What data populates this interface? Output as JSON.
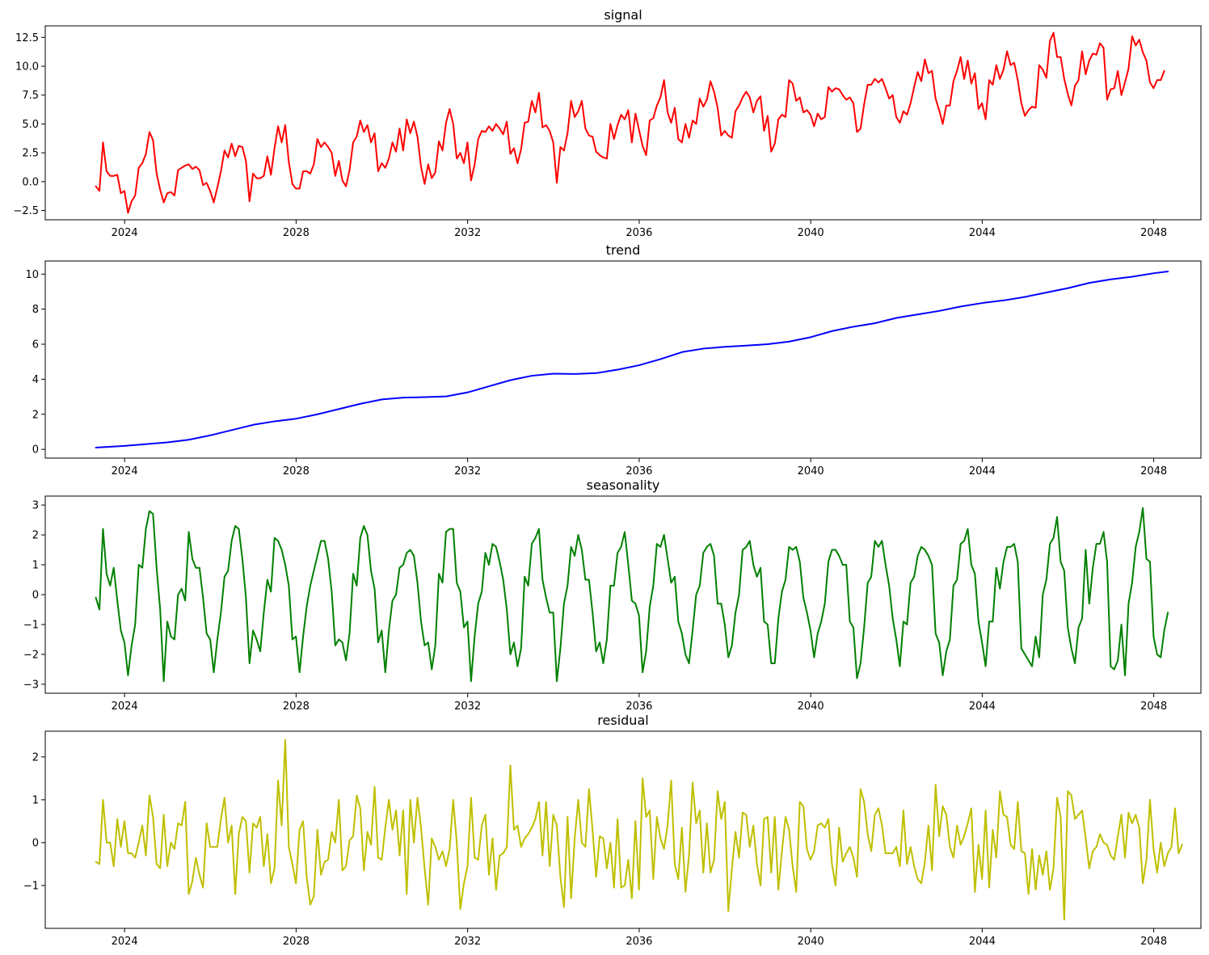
{
  "chart_data": [
    {
      "type": "line",
      "title": "signal",
      "color": "#ff0000",
      "xlim": [
        2022.15,
        2049.1
      ],
      "ylim": [
        -3.3,
        13.5
      ],
      "yticks": [
        -2.5,
        0.0,
        2.5,
        5.0,
        7.5,
        10.0,
        12.5
      ],
      "ytick_labels": [
        "−2.5",
        "0.0",
        "2.5",
        "5.0",
        "7.5",
        "10.0",
        "12.5"
      ],
      "xticks": [
        2024,
        2028,
        2032,
        2036,
        2040,
        2044,
        2048
      ],
      "xtick_labels": [
        "2024",
        "2028",
        "2032",
        "2036",
        "2040",
        "2044",
        "2048"
      ],
      "x_start": 2023.33,
      "x_step": 0.08333,
      "values": [
        -0.4,
        -0.8,
        3.4,
        0.9,
        0.5,
        0.5,
        0.6,
        -1.0,
        -0.8,
        -2.7,
        -1.7,
        -1.2,
        1.2,
        1.6,
        2.4,
        4.3,
        3.6,
        0.7,
        -0.7,
        -1.8,
        -1.0,
        -0.9,
        -1.2,
        1.0,
        1.2,
        1.4,
        1.5,
        1.1,
        1.3,
        1.0,
        -0.3,
        -0.1,
        -0.8,
        -1.8,
        -0.5,
        0.9,
        2.7,
        2.1,
        3.3,
        2.2,
        3.1,
        3.0,
        1.8,
        -1.7,
        0.7,
        0.3,
        0.3,
        0.5,
        2.2,
        0.6,
        2.9,
        4.8,
        3.4,
        4.9,
        1.7,
        -0.2,
        -0.6,
        -0.6,
        0.9,
        0.9,
        0.7,
        1.5,
        3.7,
        3.0,
        3.4,
        3.0,
        2.5,
        0.5,
        1.8,
        0.1,
        -0.4,
        1.0,
        3.4,
        3.9,
        5.3,
        4.3,
        4.9,
        3.4,
        4.2,
        0.9,
        1.6,
        1.2,
        2.0,
        3.4,
        2.6,
        4.6,
        2.7,
        5.4,
        4.2,
        5.2,
        3.9,
        1.3,
        -0.2,
        1.5,
        0.3,
        0.8,
        3.5,
        2.7,
        5.1,
        6.3,
        5.0,
        2.0,
        2.5,
        1.6,
        3.4,
        0.1,
        1.5,
        3.7,
        4.4,
        4.3,
        4.8,
        4.4,
        5.0,
        4.6,
        4.1,
        5.2,
        2.4,
        2.9,
        1.6,
        2.8,
        5.1,
        5.2,
        7.0,
        6.0,
        7.7,
        4.7,
        4.9,
        4.4,
        3.4,
        -0.1,
        3.0,
        2.7,
        4.2,
        7.0,
        5.6,
        6.1,
        7.0,
        4.6,
        4.0,
        3.9,
        2.6,
        2.3,
        2.1,
        2.0,
        5.0,
        3.7,
        4.9,
        5.8,
        5.4,
        6.2,
        3.4,
        5.9,
        4.5,
        3.1,
        2.3,
        5.3,
        5.5,
        6.6,
        7.3,
        8.8,
        6.0,
        5.1,
        6.4,
        3.7,
        3.4,
        5.0,
        3.8,
        5.3,
        5.0,
        7.2,
        6.5,
        7.1,
        8.7,
        7.8,
        6.4,
        4.0,
        4.4,
        4.0,
        3.8,
        6.1,
        6.6,
        7.3,
        7.8,
        7.3,
        6.0,
        7.0,
        7.4,
        4.4,
        5.7,
        2.6,
        3.3,
        5.4,
        5.8,
        5.6,
        8.8,
        8.5,
        7.0,
        7.3,
        6.0,
        6.2,
        5.8,
        4.8,
        5.9,
        5.4,
        5.6,
        8.2,
        7.8,
        8.1,
        8.0,
        7.5,
        7.1,
        7.3,
        6.8,
        4.3,
        4.6,
        6.7,
        8.4,
        8.4,
        8.9,
        8.6,
        8.9,
        8.1,
        7.2,
        7.5,
        5.6,
        5.1,
        6.1,
        5.8,
        6.8,
        8.2,
        9.5,
        8.7,
        10.6,
        9.4,
        9.6,
        7.2,
        6.2,
        5.0,
        6.6,
        6.6,
        8.7,
        9.6,
        10.8,
        8.9,
        10.5,
        8.5,
        9.4,
        6.3,
        6.8,
        5.4,
        8.8,
        8.4,
        10.1,
        8.9,
        9.7,
        11.3,
        10.1,
        10.3,
        8.8,
        6.8,
        5.7,
        6.2,
        6.5,
        6.4,
        10.1,
        9.7,
        9.0,
        12.2,
        12.9,
        10.8,
        10.8,
        8.9,
        7.6,
        6.6,
        8.3,
        8.8,
        11.3,
        9.3,
        10.5,
        11.1,
        11.0,
        12.0,
        11.6,
        7.1,
        8.0,
        8.1,
        9.6,
        7.5,
        8.6,
        9.8,
        12.6,
        11.8,
        12.3,
        11.2,
        10.5,
        8.6,
        8.1,
        8.8,
        8.8,
        9.6
      ]
    },
    {
      "type": "line",
      "title": "trend",
      "color": "#0000ff",
      "xlim": [
        2022.15,
        2049.1
      ],
      "ylim": [
        -0.5,
        10.75
      ],
      "yticks": [
        0,
        2,
        4,
        6,
        8,
        10
      ],
      "ytick_labels": [
        "0",
        "2",
        "4",
        "6",
        "8",
        "10"
      ],
      "xticks": [
        2024,
        2028,
        2032,
        2036,
        2040,
        2044,
        2048
      ],
      "xtick_labels": [
        "2024",
        "2028",
        "2032",
        "2036",
        "2040",
        "2044",
        "2048"
      ],
      "points": [
        [
          2023.33,
          0.1
        ],
        [
          2024.0,
          0.2
        ],
        [
          2025.0,
          0.4
        ],
        [
          2025.5,
          0.55
        ],
        [
          2026.0,
          0.8
        ],
        [
          2026.5,
          1.1
        ],
        [
          2027.0,
          1.4
        ],
        [
          2027.5,
          1.6
        ],
        [
          2028.0,
          1.75
        ],
        [
          2028.5,
          2.0
        ],
        [
          2029.0,
          2.3
        ],
        [
          2029.5,
          2.6
        ],
        [
          2030.0,
          2.85
        ],
        [
          2030.5,
          2.95
        ],
        [
          2031.0,
          2.98
        ],
        [
          2031.5,
          3.02
        ],
        [
          2032.0,
          3.25
        ],
        [
          2032.5,
          3.6
        ],
        [
          2033.0,
          3.95
        ],
        [
          2033.5,
          4.2
        ],
        [
          2034.0,
          4.32
        ],
        [
          2034.5,
          4.3
        ],
        [
          2035.0,
          4.35
        ],
        [
          2035.5,
          4.55
        ],
        [
          2036.0,
          4.8
        ],
        [
          2036.5,
          5.15
        ],
        [
          2037.0,
          5.55
        ],
        [
          2037.5,
          5.75
        ],
        [
          2038.0,
          5.85
        ],
        [
          2038.5,
          5.92
        ],
        [
          2039.0,
          6.0
        ],
        [
          2039.5,
          6.15
        ],
        [
          2040.0,
          6.4
        ],
        [
          2040.5,
          6.75
        ],
        [
          2041.0,
          7.0
        ],
        [
          2041.5,
          7.2
        ],
        [
          2042.0,
          7.5
        ],
        [
          2042.5,
          7.7
        ],
        [
          2043.0,
          7.9
        ],
        [
          2043.5,
          8.15
        ],
        [
          2044.0,
          8.35
        ],
        [
          2044.5,
          8.5
        ],
        [
          2045.0,
          8.7
        ],
        [
          2045.5,
          8.95
        ],
        [
          2046.0,
          9.2
        ],
        [
          2046.5,
          9.5
        ],
        [
          2047.0,
          9.7
        ],
        [
          2047.5,
          9.85
        ],
        [
          2048.0,
          10.05
        ],
        [
          2048.33,
          10.15
        ]
      ]
    },
    {
      "type": "line",
      "title": "seasonality",
      "color": "#008000",
      "xlim": [
        2022.15,
        2049.1
      ],
      "ylim": [
        -3.3,
        3.3
      ],
      "yticks": [
        -3,
        -2,
        -1,
        0,
        1,
        2,
        3
      ],
      "ytick_labels": [
        "−3",
        "−2",
        "−1",
        "0",
        "1",
        "2",
        "3"
      ],
      "xticks": [
        2024,
        2028,
        2032,
        2036,
        2040,
        2044,
        2048
      ],
      "xtick_labels": [
        "2024",
        "2028",
        "2032",
        "2036",
        "2040",
        "2044",
        "2048"
      ],
      "x_start": 2023.33,
      "x_step": 0.08333,
      "values": [
        -0.1,
        -0.5,
        2.2,
        0.7,
        0.3,
        0.9,
        -0.2,
        -1.2,
        -1.6,
        -2.7,
        -1.7,
        -1.0,
        1.0,
        0.9,
        2.2,
        2.8,
        2.7,
        0.9,
        -0.5,
        -2.9,
        -0.9,
        -1.4,
        -1.5,
        0.0,
        0.2,
        -0.2,
        2.1,
        1.2,
        0.9,
        0.9,
        -0.1,
        -1.3,
        -1.5,
        -2.6,
        -1.5,
        -0.6,
        0.6,
        0.8,
        1.8,
        2.3,
        2.2,
        1.2,
        -0.1,
        -2.3,
        -1.2,
        -1.5,
        -1.9,
        -0.6,
        0.5,
        0.1,
        1.9,
        1.8,
        1.5,
        1.0,
        0.3,
        -1.5,
        -1.4,
        -2.6,
        -1.4,
        -0.4,
        0.3,
        0.8,
        1.3,
        1.8,
        1.8,
        1.2,
        0.1,
        -1.7,
        -1.5,
        -1.6,
        -2.2,
        -1.3,
        0.7,
        0.3,
        1.9,
        2.3,
        2.0,
        0.8,
        0.2,
        -1.6,
        -1.2,
        -2.6,
        -1.2,
        -0.2,
        0.0,
        0.9,
        1.0,
        1.4,
        1.5,
        1.3,
        0.4,
        -0.9,
        -1.7,
        -1.6,
        -2.5,
        -1.7,
        0.7,
        0.4,
        2.1,
        2.2,
        2.2,
        0.4,
        0.1,
        -1.1,
        -0.9,
        -2.9,
        -1.4,
        -0.3,
        0.1,
        1.4,
        1.0,
        1.7,
        1.6,
        1.1,
        0.5,
        -0.5,
        -2.0,
        -1.6,
        -2.4,
        -1.8,
        0.6,
        0.3,
        1.7,
        1.9,
        2.2,
        0.5,
        -0.1,
        -0.6,
        -0.6,
        -2.9,
        -1.8,
        -0.3,
        0.3,
        1.6,
        1.3,
        2.0,
        1.5,
        0.5,
        0.5,
        -0.6,
        -1.9,
        -1.6,
        -2.3,
        -1.5,
        0.3,
        0.3,
        1.4,
        1.6,
        2.1,
        1.0,
        -0.2,
        -0.3,
        -0.7,
        -2.6,
        -1.9,
        -0.4,
        0.3,
        1.7,
        1.6,
        2.0,
        1.2,
        0.4,
        0.6,
        -0.9,
        -1.3,
        -2.0,
        -2.3,
        -1.2,
        0.0,
        0.3,
        1.4,
        1.6,
        1.7,
        1.3,
        -0.3,
        -0.3,
        -1.0,
        -2.1,
        -1.7,
        -0.6,
        0.0,
        1.5,
        1.6,
        1.8,
        1.0,
        0.6,
        0.9,
        -0.9,
        -1.0,
        -2.3,
        -2.3,
        -0.8,
        0.1,
        0.5,
        1.6,
        1.5,
        1.6,
        1.1,
        -0.1,
        -0.6,
        -1.2,
        -2.1,
        -1.3,
        -0.9,
        -0.3,
        1.1,
        1.5,
        1.5,
        1.3,
        1.0,
        1.0,
        -0.9,
        -1.1,
        -2.8,
        -2.3,
        -1.1,
        0.4,
        0.6,
        1.8,
        1.6,
        1.8,
        1.0,
        0.3,
        -0.8,
        -1.5,
        -2.4,
        -0.9,
        -1.0,
        0.4,
        0.6,
        1.3,
        1.6,
        1.5,
        1.3,
        1.0,
        -1.3,
        -1.6,
        -2.7,
        -1.9,
        -1.5,
        0.3,
        0.5,
        1.7,
        1.8,
        2.2,
        1.0,
        0.7,
        -0.9,
        -1.6,
        -2.4,
        -0.9,
        -0.9,
        0.9,
        0.2,
        1.1,
        1.6,
        1.6,
        1.7,
        1.1,
        -1.8,
        -2.0,
        -2.2,
        -2.4,
        -1.4,
        -2.1,
        0.0,
        0.5,
        1.7,
        1.9,
        2.6,
        1.1,
        0.8,
        -1.1,
        -1.8,
        -2.3,
        -1.1,
        -0.8,
        1.5,
        -0.3,
        0.9,
        1.7,
        1.7,
        2.1,
        1.1,
        -2.4,
        -2.5,
        -2.2,
        -1.0,
        -2.7,
        -0.3,
        0.4,
        1.6,
        2.1,
        2.9,
        1.2,
        1.1,
        -1.4,
        -2.0,
        -2.1,
        -1.2,
        -0.6
      ]
    },
    {
      "type": "line",
      "title": "residual",
      "color": "#bfbf00",
      "xlim": [
        2022.15,
        2049.1
      ],
      "ylim": [
        -2.0,
        2.6
      ],
      "yticks": [
        -1,
        0,
        1,
        2
      ],
      "ytick_labels": [
        "−1",
        "0",
        "1",
        "2"
      ],
      "xticks": [
        2024,
        2028,
        2032,
        2036,
        2040,
        2044,
        2048
      ],
      "xtick_labels": [
        "2024",
        "2028",
        "2032",
        "2036",
        "2040",
        "2044",
        "2048"
      ],
      "x_start": 2023.33,
      "x_step": 0.08333,
      "values": [
        -0.45,
        -0.5,
        1.0,
        0.0,
        0.0,
        -0.55,
        0.55,
        -0.1,
        0.5,
        -0.25,
        -0.25,
        -0.35,
        0.0,
        0.4,
        -0.3,
        1.1,
        0.6,
        -0.5,
        -0.6,
        0.65,
        -0.55,
        0.0,
        -0.15,
        0.45,
        0.4,
        0.95,
        -1.2,
        -0.9,
        -0.35,
        -0.75,
        -1.05,
        0.45,
        -0.1,
        -0.1,
        -0.1,
        0.55,
        1.05,
        0.0,
        0.4,
        -1.2,
        0.2,
        0.6,
        0.5,
        -0.7,
        0.45,
        0.35,
        0.6,
        -0.55,
        0.2,
        -0.95,
        -0.6,
        1.45,
        0.4,
        2.4,
        -0.1,
        -0.5,
        -0.95,
        0.3,
        0.5,
        -0.8,
        -1.45,
        -1.25,
        0.3,
        -0.75,
        -0.45,
        -0.4,
        0.25,
        0.0,
        1.0,
        -0.65,
        -0.55,
        0.05,
        0.15,
        1.1,
        0.8,
        -0.65,
        0.25,
        -0.05,
        1.3,
        -0.35,
        -0.4,
        0.35,
        1.0,
        0.3,
        0.75,
        -0.3,
        0.75,
        -1.2,
        1.0,
        0.0,
        1.05,
        0.35,
        -0.6,
        -1.45,
        0.1,
        -0.1,
        -0.4,
        -0.2,
        -0.55,
        -0.15,
        1.0,
        0.0,
        -1.55,
        -0.95,
        -0.55,
        1.05,
        -0.35,
        -0.4,
        0.4,
        0.65,
        -0.75,
        0.1,
        -1.1,
        -0.3,
        -0.25,
        -0.1,
        1.8,
        0.3,
        0.4,
        -0.1,
        0.1,
        0.2,
        0.35,
        0.55,
        0.95,
        -0.3,
        0.95,
        -0.55,
        0.65,
        0.4,
        -0.8,
        -1.5,
        0.6,
        -1.3,
        0.1,
        1.0,
        0.0,
        -0.1,
        1.25,
        0.3,
        -0.8,
        0.15,
        0.1,
        -0.6,
        0.0,
        -1.05,
        0.55,
        -1.05,
        -1.0,
        -0.4,
        -1.3,
        0.5,
        -1.1,
        1.5,
        0.6,
        0.75,
        -0.85,
        0.6,
        0.1,
        -0.15,
        0.4,
        1.45,
        -0.5,
        -0.85,
        0.35,
        -1.15,
        -0.3,
        1.4,
        0.45,
        0.75,
        -0.7,
        0.45,
        -0.7,
        -0.4,
        1.2,
        0.55,
        0.95,
        -1.6,
        -0.6,
        0.25,
        -0.35,
        0.7,
        0.65,
        -0.1,
        0.4,
        -0.5,
        -1.0,
        0.55,
        0.6,
        -0.7,
        0.6,
        -1.1,
        -0.2,
        0.6,
        0.3,
        -0.55,
        -1.15,
        0.95,
        0.85,
        -0.15,
        -0.4,
        -0.2,
        0.4,
        0.45,
        0.35,
        0.55,
        -0.5,
        -1.0,
        0.35,
        -0.45,
        -0.25,
        -0.1,
        -0.35,
        -0.8,
        1.25,
        0.95,
        0.2,
        -0.2,
        0.65,
        0.8,
        0.4,
        -0.25,
        -0.25,
        -0.25,
        -0.1,
        -0.55,
        0.75,
        -0.5,
        -0.1,
        -0.55,
        -0.85,
        -0.95,
        -0.45,
        0.4,
        -0.65,
        1.35,
        0.15,
        0.85,
        0.65,
        -0.1,
        -0.35,
        0.4,
        -0.05,
        0.15,
        0.45,
        0.8,
        -1.15,
        -0.05,
        -0.85,
        0.75,
        -1.05,
        0.3,
        -0.35,
        1.2,
        0.65,
        0.6,
        -0.05,
        -0.15,
        0.95,
        -0.2,
        -0.25,
        -1.2,
        -0.15,
        -1.1,
        -0.3,
        -0.75,
        -0.2,
        -1.1,
        -0.6,
        1.05,
        0.6,
        -1.8,
        1.2,
        1.1,
        0.55,
        0.65,
        0.75,
        0.1,
        -0.6,
        -0.2,
        -0.1,
        0.2,
        0.0,
        -0.05,
        -0.3,
        -0.4,
        0.15,
        0.65,
        -0.35,
        0.7,
        0.45,
        0.65,
        0.35,
        -0.95,
        -0.4,
        1.0,
        -0.15,
        -0.7,
        0.0,
        -0.55,
        -0.25,
        -0.1,
        0.8,
        -0.25,
        -0.05
      ]
    }
  ]
}
